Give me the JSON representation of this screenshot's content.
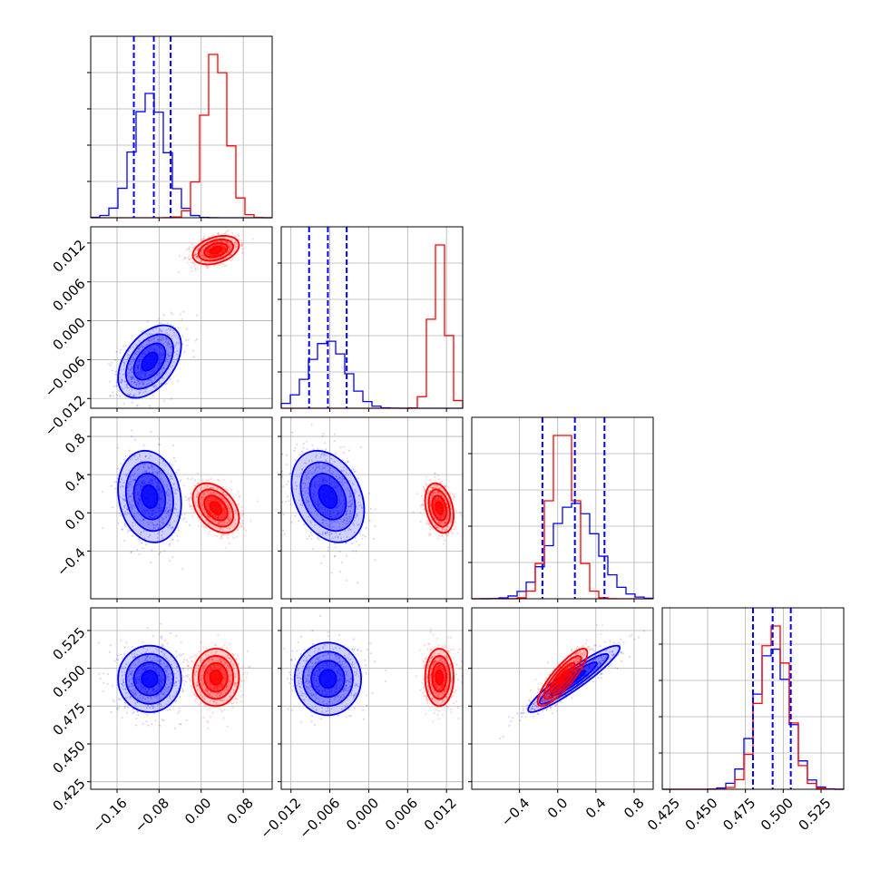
{
  "chart_data": {
    "type": "corner",
    "grid": true,
    "colors": {
      "series_a": "#0000ff",
      "series_b": "#ff0000"
    },
    "series": [
      {
        "color": "#0000ff",
        "quantile_lines": true,
        "means": [
          -0.098,
          -0.0063,
          0.17,
          0.493
        ],
        "sds": [
          0.03,
          0.0028,
          0.24,
          0.011
        ],
        "correlations": {
          "0-1": 0.45,
          "0-2": -0.15,
          "1-2": -0.3,
          "0-3": 0.0,
          "1-3": 0.0,
          "2-3": 0.93
        }
      },
      {
        "color": "#ff0000",
        "quantile_lines": false,
        "means": [
          0.028,
          0.0109,
          0.05,
          0.494
        ],
        "sds": [
          0.022,
          0.0011,
          0.13,
          0.0095
        ],
        "correlations": {
          "0-1": 0.35,
          "0-2": -0.4,
          "1-2": -0.3,
          "0-3": 0.0,
          "1-3": 0.0,
          "2-3": 0.85
        }
      }
    ],
    "quantiles": {
      "p0": [
        -0.128,
        -0.09,
        -0.058
      ],
      "p1": [
        -0.0092,
        -0.0063,
        -0.0034
      ],
      "p2": [
        -0.16,
        0.18,
        0.49
      ],
      "p3": [
        0.48,
        0.493,
        0.505
      ]
    },
    "parameters": [
      {
        "range": [
          -0.21,
          0.135
        ],
        "ticks": [
          "−0.16",
          "−0.08",
          "0.00",
          "0.08"
        ],
        "tick_values": [
          -0.16,
          -0.08,
          0.0,
          0.08
        ]
      },
      {
        "range": [
          -0.0135,
          0.0145
        ],
        "ticks": [
          "−0.012",
          "−0.006",
          "0.000",
          "0.006",
          "0.012"
        ],
        "tick_values": [
          -0.012,
          -0.006,
          0.0,
          0.006,
          0.012
        ]
      },
      {
        "range": [
          -0.9,
          1.0
        ],
        "ticks": [
          "−0.4",
          "0.0",
          "0.4",
          "0.8"
        ],
        "tick_values": [
          -0.4,
          0.0,
          0.4,
          0.8
        ]
      },
      {
        "range": [
          0.42,
          0.54
        ],
        "ticks": [
          "0.425",
          "0.450",
          "0.475",
          "0.500",
          "0.525"
        ],
        "tick_values": [
          0.425,
          0.45,
          0.475,
          0.5,
          0.525
        ]
      }
    ]
  }
}
